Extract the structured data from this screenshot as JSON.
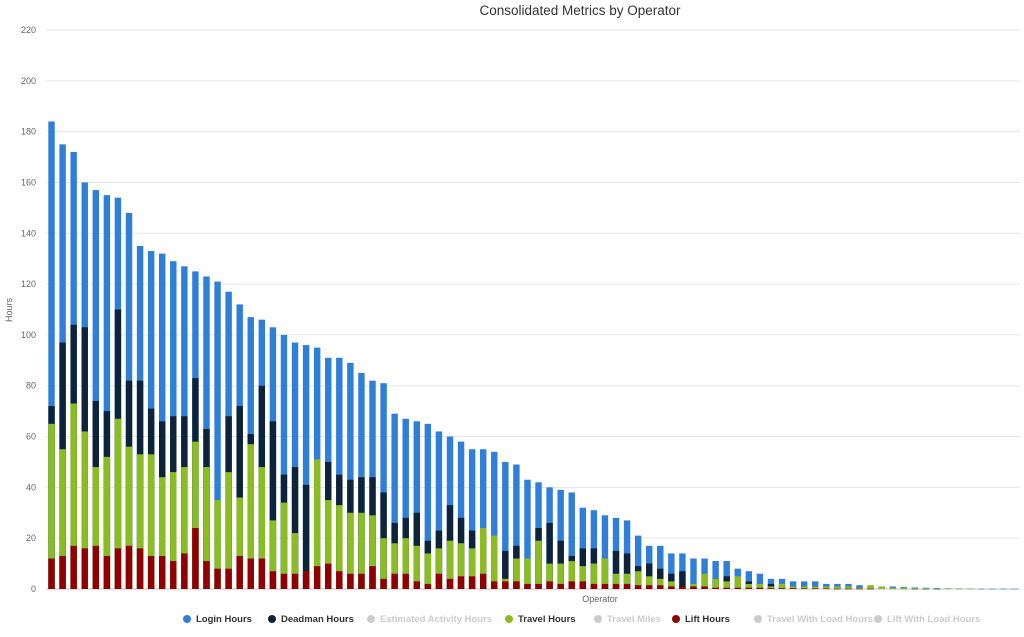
{
  "chart_data": {
    "type": "bar",
    "title": "Consolidated Metrics by Operator",
    "xlabel": "Operator",
    "ylabel": "Hours",
    "ylim": [
      0,
      220
    ],
    "yticks": [
      0,
      20,
      40,
      60,
      80,
      100,
      120,
      140,
      160,
      180,
      200,
      220
    ],
    "grid": true,
    "legend_position": "bottom",
    "stacking": "overlapped",
    "series": [
      {
        "name": "Login Hours",
        "color": "#2f7ed8",
        "visible": true,
        "values": [
          184,
          175,
          172,
          160,
          157,
          155,
          154,
          148,
          135,
          133,
          132,
          129,
          127,
          125,
          123,
          121,
          117,
          112,
          107,
          106,
          103,
          100,
          97,
          96,
          95,
          91,
          91,
          89,
          85,
          82,
          81,
          69,
          67,
          66,
          65,
          62,
          60,
          58,
          55,
          55,
          54,
          50,
          49,
          43,
          42,
          40,
          39,
          38,
          32,
          31,
          29,
          28,
          27,
          21,
          17,
          17,
          14,
          14,
          12,
          12,
          11,
          11,
          8,
          7,
          6,
          4,
          4,
          3,
          3,
          3,
          2,
          2,
          2,
          1.5,
          1.2,
          1,
          1,
          0.8,
          0.6,
          0.5,
          0.4,
          0.3,
          0.2,
          0.2,
          0.1,
          0.1,
          0.1,
          0.1
        ]
      },
      {
        "name": "Deadman Hours",
        "color": "#0d233a",
        "visible": true,
        "values": [
          72,
          97,
          104,
          103,
          74,
          70,
          110,
          82,
          82,
          71,
          66,
          68,
          68,
          83,
          63,
          0,
          68,
          72,
          61,
          80,
          66,
          45,
          48,
          41,
          0,
          50,
          45,
          43,
          44,
          44,
          38,
          26,
          28,
          30,
          19,
          23,
          33,
          28,
          23,
          22,
          0,
          15,
          17,
          0,
          24,
          26,
          19,
          13,
          16,
          16,
          12,
          15,
          14,
          9,
          10,
          8,
          6,
          7,
          0,
          0,
          4,
          5,
          3,
          3,
          2,
          2,
          1,
          1,
          1,
          1,
          1,
          1,
          0.5,
          0.5,
          0.3,
          0.3,
          0.2,
          0.2,
          0.1,
          0.1,
          0.1,
          0,
          0,
          0,
          0,
          0,
          0,
          0
        ]
      },
      {
        "name": "Estimated Activity Hours",
        "color": "#cccccc",
        "visible": false,
        "values": []
      },
      {
        "name": "Travel Hours",
        "color": "#8bbc21",
        "visible": true,
        "values": [
          65,
          55,
          73,
          62,
          48,
          52,
          67,
          56,
          53,
          53,
          44,
          46,
          48,
          58,
          48,
          35,
          46,
          36,
          57,
          48,
          27,
          34,
          22,
          0,
          51,
          35,
          33,
          30,
          30,
          29,
          20,
          18,
          20,
          17,
          14,
          16,
          19,
          18,
          16,
          24,
          21,
          4,
          12,
          12,
          19,
          10,
          10,
          11,
          9,
          10,
          12,
          6,
          6,
          7,
          5,
          4,
          3,
          0,
          2,
          6,
          4,
          3,
          5,
          2,
          2,
          1,
          2,
          1,
          1,
          1,
          1,
          1,
          1,
          0.5,
          1.5,
          1,
          0.5,
          0.5,
          0.3,
          0.3,
          0.2,
          0.2,
          0.1,
          0.1,
          0,
          0,
          0,
          0
        ]
      },
      {
        "name": "Travel Miles",
        "color": "#cccccc",
        "visible": false,
        "values": []
      },
      {
        "name": "Lift Hours",
        "color": "#910000",
        "visible": true,
        "values": [
          12,
          13,
          17,
          16,
          17,
          13,
          16,
          17,
          16,
          13,
          13,
          11,
          14,
          24,
          11,
          8,
          8,
          13,
          12,
          12,
          7,
          6,
          6,
          7,
          9,
          10,
          7,
          6,
          6,
          9,
          4,
          6,
          6,
          3,
          2,
          6,
          4,
          5,
          5,
          6,
          3,
          3,
          3,
          2,
          2,
          3,
          2,
          3,
          3,
          2,
          2,
          2,
          2,
          1.5,
          1.5,
          1.5,
          1,
          1,
          1,
          1,
          0.5,
          0.5,
          0.5,
          0.5,
          0.5,
          0.3,
          0.3,
          0.3,
          0.2,
          0.2,
          0.2,
          0.1,
          0.1,
          0.1,
          0.1,
          0,
          0,
          0,
          0,
          0,
          0,
          0,
          0,
          0,
          0,
          0,
          0,
          0
        ]
      },
      {
        "name": "Travel With Load Hours",
        "color": "#cccccc",
        "visible": false,
        "values": []
      },
      {
        "name": "Lift With Load Hours",
        "color": "#cccccc",
        "visible": false,
        "values": []
      }
    ]
  }
}
